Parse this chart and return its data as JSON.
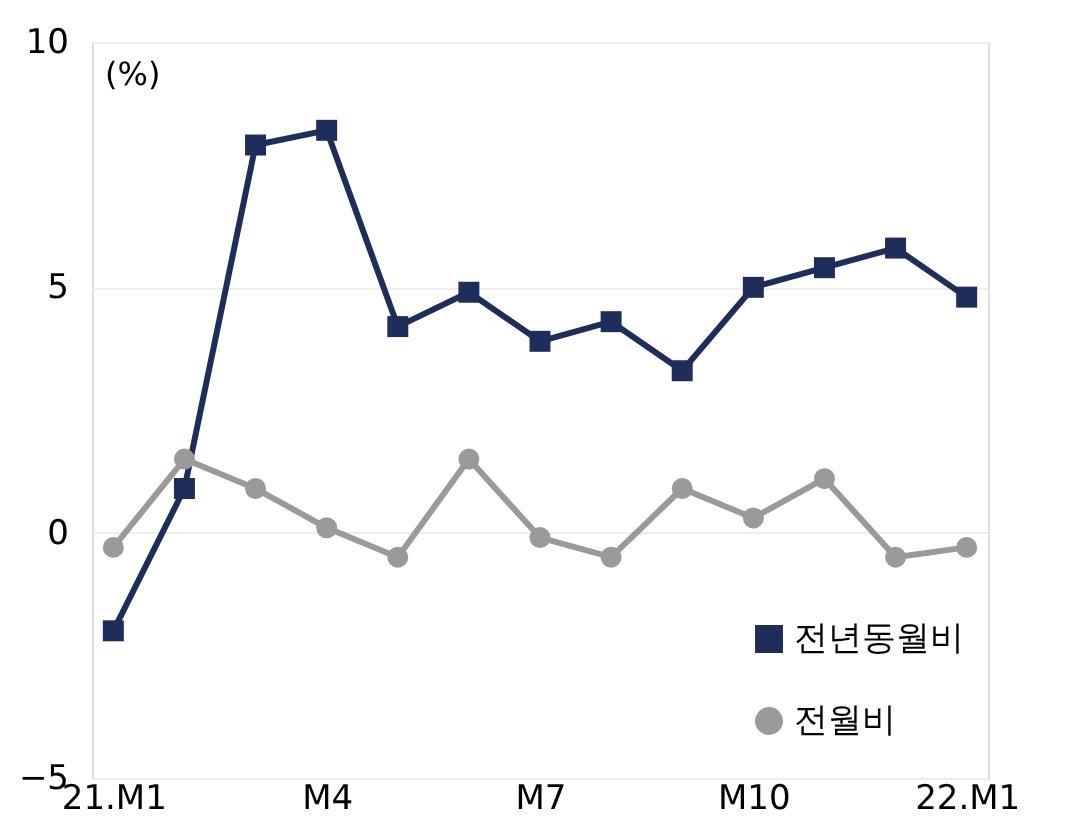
{
  "chart_data": {
    "type": "line",
    "ylabel": "(%)",
    "categories": [
      "21.M1",
      null,
      null,
      "M4",
      null,
      null,
      "M7",
      null,
      null,
      "M10",
      null,
      null,
      "22.M1"
    ],
    "series": [
      {
        "name": "전년동월비",
        "color": "#1f2d5a",
        "marker": "square",
        "values": [
          -2.0,
          0.9,
          7.9,
          8.2,
          4.2,
          4.9,
          3.9,
          4.3,
          3.3,
          5.0,
          5.4,
          5.8,
          4.8
        ]
      },
      {
        "name": "전월비",
        "color": "#9a9a9a",
        "marker": "circle",
        "values": [
          -0.3,
          1.5,
          0.9,
          0.1,
          -0.5,
          1.5,
          -0.1,
          -0.5,
          0.9,
          0.3,
          1.1,
          -0.5,
          -0.3
        ]
      }
    ],
    "ylim": [
      -5,
      10
    ],
    "yticks": [
      -5,
      0,
      5,
      10
    ],
    "grid": "y",
    "legend": "bottom right",
    "line_style": "solid"
  }
}
